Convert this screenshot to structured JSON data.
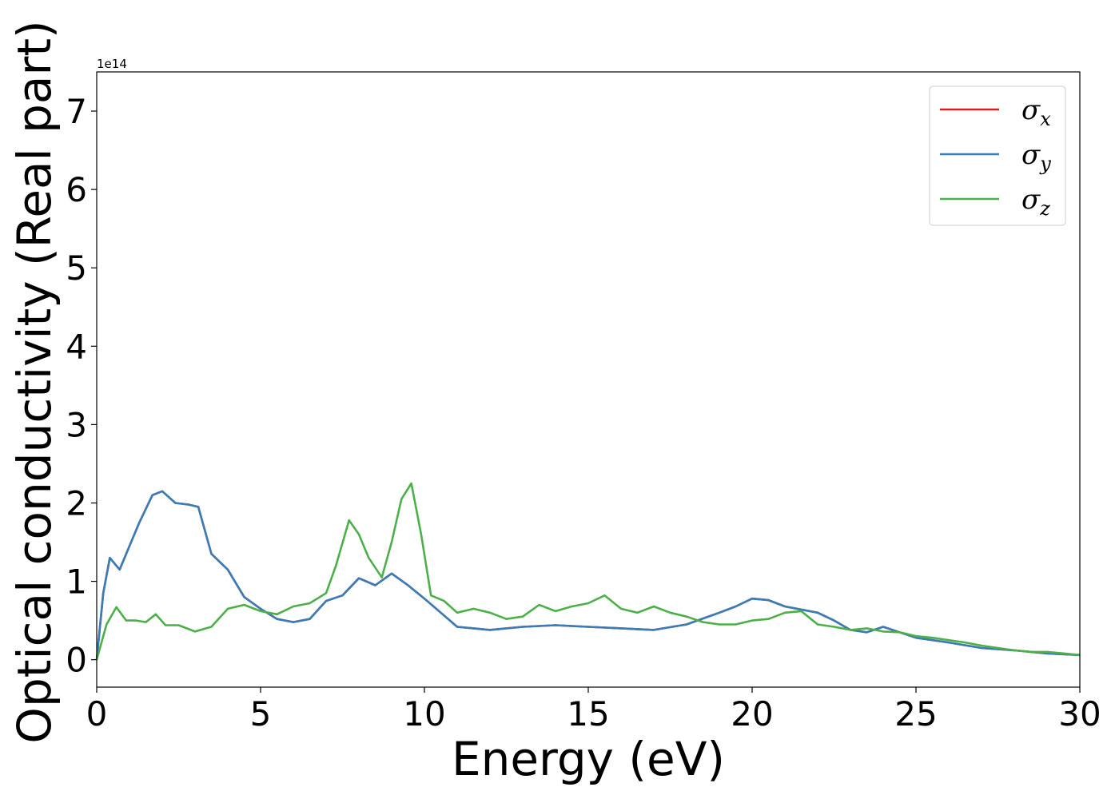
{
  "chart_data": {
    "type": "line",
    "xlabel": "Energy (eV)",
    "ylabel": "Optical conductivity (Real part)",
    "y_offset_label": "1e14",
    "xlim": [
      0,
      30
    ],
    "ylim": [
      -0.35,
      7.5
    ],
    "xticks": [
      0,
      5,
      10,
      15,
      20,
      25,
      30
    ],
    "xtick_labels": [
      "0",
      "5",
      "10",
      "15",
      "20",
      "25",
      "30"
    ],
    "yticks": [
      0,
      1,
      2,
      3,
      4,
      5,
      6,
      7
    ],
    "ytick_labels": [
      "0",
      "1",
      "2",
      "3",
      "4",
      "5",
      "6",
      "7"
    ],
    "grid": false,
    "legend_position": "top-right",
    "series": [
      {
        "name": "σx",
        "symbol": "σ",
        "sub": "x",
        "color": "#e41a1c",
        "x": [
          0,
          0.2,
          0.4,
          0.7,
          1,
          1.3,
          1.7,
          2,
          2.4,
          2.8,
          3.1,
          3.5,
          4,
          4.5,
          5,
          5.5,
          6,
          6.5,
          7,
          7.5,
          8,
          8.5,
          9,
          9.5,
          10,
          10.5,
          11,
          11.5,
          12,
          13,
          14,
          15,
          16,
          17,
          18,
          19,
          19.5,
          20,
          20.5,
          21,
          22,
          22.5,
          23,
          23.5,
          24,
          24.5,
          25,
          26,
          27,
          28,
          29,
          30
        ],
        "y": [
          0,
          0.85,
          1.3,
          1.15,
          1.45,
          1.75,
          2.1,
          2.15,
          2.0,
          1.98,
          1.95,
          1.35,
          1.15,
          0.8,
          0.65,
          0.52,
          0.48,
          0.52,
          0.75,
          0.82,
          1.04,
          0.95,
          1.1,
          0.95,
          0.78,
          0.6,
          0.42,
          0.4,
          0.38,
          0.42,
          0.44,
          0.42,
          0.4,
          0.38,
          0.45,
          0.6,
          0.68,
          0.78,
          0.76,
          0.68,
          0.6,
          0.5,
          0.38,
          0.35,
          0.42,
          0.35,
          0.28,
          0.22,
          0.15,
          0.12,
          0.08,
          0.06
        ]
      },
      {
        "name": "σy",
        "symbol": "σ",
        "sub": "y",
        "color": "#377eb8",
        "x": [
          0,
          0.2,
          0.4,
          0.7,
          1,
          1.3,
          1.7,
          2,
          2.4,
          2.8,
          3.1,
          3.5,
          4,
          4.5,
          5,
          5.5,
          6,
          6.5,
          7,
          7.5,
          8,
          8.5,
          9,
          9.5,
          10,
          10.5,
          11,
          11.5,
          12,
          13,
          14,
          15,
          16,
          17,
          18,
          19,
          19.5,
          20,
          20.5,
          21,
          22,
          22.5,
          23,
          23.5,
          24,
          24.5,
          25,
          26,
          27,
          28,
          29,
          30
        ],
        "y": [
          0,
          0.85,
          1.3,
          1.15,
          1.45,
          1.75,
          2.1,
          2.15,
          2.0,
          1.98,
          1.95,
          1.35,
          1.15,
          0.8,
          0.65,
          0.52,
          0.48,
          0.52,
          0.75,
          0.82,
          1.04,
          0.95,
          1.1,
          0.95,
          0.78,
          0.6,
          0.42,
          0.4,
          0.38,
          0.42,
          0.44,
          0.42,
          0.4,
          0.38,
          0.45,
          0.6,
          0.68,
          0.78,
          0.76,
          0.68,
          0.6,
          0.5,
          0.38,
          0.35,
          0.42,
          0.35,
          0.28,
          0.22,
          0.15,
          0.12,
          0.08,
          0.06
        ]
      },
      {
        "name": "σz",
        "symbol": "σ",
        "sub": "z",
        "color": "#4daf4a",
        "x": [
          0,
          0.3,
          0.6,
          0.9,
          1.2,
          1.5,
          1.8,
          2.1,
          2.5,
          3,
          3.5,
          4,
          4.5,
          5,
          5.5,
          6,
          6.5,
          7,
          7.3,
          7.7,
          8,
          8.3,
          8.7,
          9,
          9.3,
          9.6,
          9.9,
          10.2,
          10.6,
          11,
          11.5,
          12,
          12.5,
          13,
          13.5,
          14,
          14.5,
          15,
          15.5,
          16,
          16.5,
          17,
          17.5,
          18,
          18.5,
          19,
          19.5,
          20,
          20.5,
          21,
          21.5,
          22,
          22.5,
          23,
          23.5,
          24,
          24.5,
          25,
          25.5,
          26,
          26.5,
          27,
          27.5,
          28,
          28.5,
          29,
          29.5,
          30
        ],
        "y": [
          0,
          0.45,
          0.67,
          0.5,
          0.5,
          0.48,
          0.58,
          0.44,
          0.44,
          0.36,
          0.42,
          0.65,
          0.7,
          0.62,
          0.58,
          0.68,
          0.72,
          0.85,
          1.2,
          1.78,
          1.6,
          1.3,
          1.05,
          1.5,
          2.05,
          2.25,
          1.6,
          0.82,
          0.75,
          0.6,
          0.65,
          0.6,
          0.52,
          0.55,
          0.7,
          0.62,
          0.68,
          0.72,
          0.82,
          0.65,
          0.6,
          0.68,
          0.6,
          0.55,
          0.48,
          0.45,
          0.45,
          0.5,
          0.52,
          0.6,
          0.62,
          0.45,
          0.42,
          0.38,
          0.4,
          0.36,
          0.35,
          0.3,
          0.28,
          0.25,
          0.22,
          0.18,
          0.15,
          0.12,
          0.1,
          0.1,
          0.08,
          0.06
        ]
      }
    ]
  }
}
